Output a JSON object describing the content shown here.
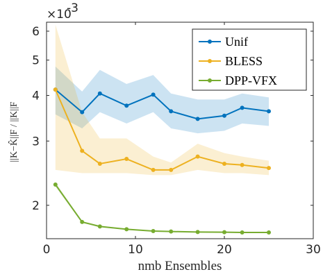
{
  "chart_data": {
    "type": "line",
    "xlabel": "nmb Ensembles",
    "ylabel": "||K−K̂||F / ||K||F",
    "exponent_label": "×10",
    "exponent_power": "-3",
    "y_scale": "log",
    "xlim": [
      0,
      30
    ],
    "ylim": [
      1.62,
      6.35
    ],
    "x_ticks": [
      0,
      10,
      20,
      30
    ],
    "y_ticks": [
      2,
      3,
      4,
      5,
      6
    ],
    "grid": false,
    "legend_position": "top-right",
    "x": [
      1,
      4,
      6,
      9,
      12,
      14,
      17,
      20,
      22,
      25
    ],
    "series": [
      {
        "name": "Unif",
        "color": "#0072BD",
        "values": [
          4.15,
          3.6,
          4.05,
          3.75,
          4.02,
          3.62,
          3.45,
          3.52,
          3.7,
          3.62
        ],
        "lower": [
          3.55,
          3.25,
          3.6,
          3.35,
          3.6,
          3.25,
          3.15,
          3.2,
          3.35,
          3.3
        ],
        "upper": [
          4.8,
          4.1,
          4.7,
          4.3,
          4.55,
          4.05,
          3.9,
          3.9,
          4.05,
          3.95
        ]
      },
      {
        "name": "BLESS",
        "color": "#EDB120",
        "values": [
          4.15,
          2.82,
          2.6,
          2.68,
          2.5,
          2.5,
          2.72,
          2.6,
          2.58,
          2.53
        ],
        "lower": [
          2.5,
          2.45,
          2.45,
          2.45,
          2.42,
          2.42,
          2.5,
          2.45,
          2.45,
          2.42
        ],
        "upper": [
          6.25,
          3.6,
          3.05,
          3.05,
          2.72,
          2.62,
          2.95,
          2.78,
          2.72,
          2.65
        ]
      },
      {
        "name": "DPP-VFX",
        "color": "#77AC30",
        "values": [
          2.28,
          1.8,
          1.75,
          1.72,
          1.7,
          1.695,
          1.69,
          1.688,
          1.685,
          1.685
        ],
        "lower": [
          2.25,
          1.79,
          1.74,
          1.715,
          1.695,
          1.69,
          1.685,
          1.683,
          1.68,
          1.68
        ],
        "upper": [
          2.31,
          1.81,
          1.76,
          1.725,
          1.705,
          1.7,
          1.695,
          1.693,
          1.69,
          1.69
        ]
      }
    ]
  }
}
